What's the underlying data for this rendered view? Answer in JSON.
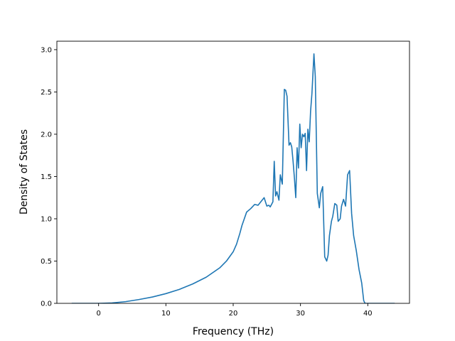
{
  "chart_data": {
    "type": "line",
    "title": "",
    "xlabel": "Frequency (THz)",
    "ylabel": "Density of States",
    "xlim": [
      -6.2,
      46.2
    ],
    "ylim": [
      0,
      3.1
    ],
    "xticks": [
      0,
      10,
      20,
      30,
      40
    ],
    "yticks": [
      0.0,
      0.5,
      1.0,
      1.5,
      2.0,
      2.5,
      3.0
    ],
    "xtick_labels": [
      "0",
      "10",
      "20",
      "30",
      "40"
    ],
    "ytick_labels": [
      "0.0",
      "0.5",
      "1.0",
      "1.5",
      "2.0",
      "2.5",
      "3.0"
    ],
    "grid": false,
    "legend": "none",
    "series": [
      {
        "color": "#1f77b4",
        "x": [
          -4.0,
          0.0,
          2,
          4,
          6,
          8,
          10,
          12,
          14,
          16,
          18,
          19,
          20,
          20.5,
          21.0,
          21.3,
          22.0,
          22.6,
          23.2,
          23.7,
          24.3,
          24.6,
          25.0,
          25.3,
          25.5,
          25.7,
          25.9,
          26.1,
          26.3,
          26.5,
          26.8,
          27.0,
          27.3,
          27.6,
          27.8,
          28.0,
          28.3,
          28.5,
          28.7,
          28.9,
          29.1,
          29.3,
          29.5,
          29.7,
          29.9,
          30.1,
          30.3,
          30.5,
          30.7,
          30.9,
          31.1,
          31.3,
          31.5,
          31.7,
          32.0,
          32.2,
          32.5,
          32.8,
          33.0,
          33.3,
          33.6,
          33.9,
          34.1,
          34.3,
          34.6,
          34.8,
          35.1,
          35.4,
          35.6,
          35.9,
          36.1,
          36.4,
          36.7,
          37.0,
          37.3,
          37.6,
          37.9,
          38.3,
          38.7,
          39.1,
          39.4,
          39.6,
          39.8,
          40.0,
          44.0
        ],
        "y": [
          0.0,
          0.0,
          0.005,
          0.02,
          0.045,
          0.075,
          0.115,
          0.165,
          0.23,
          0.31,
          0.42,
          0.5,
          0.61,
          0.7,
          0.83,
          0.92,
          1.08,
          1.12,
          1.17,
          1.16,
          1.22,
          1.25,
          1.15,
          1.16,
          1.14,
          1.17,
          1.2,
          1.68,
          1.27,
          1.32,
          1.22,
          1.52,
          1.41,
          2.53,
          2.52,
          2.45,
          1.87,
          1.9,
          1.85,
          1.68,
          1.48,
          1.25,
          1.84,
          1.6,
          2.12,
          1.84,
          2.0,
          1.97,
          2.01,
          1.57,
          2.06,
          1.91,
          2.27,
          2.48,
          2.95,
          2.68,
          1.3,
          1.13,
          1.3,
          1.38,
          0.55,
          0.5,
          0.57,
          0.8,
          0.97,
          1.03,
          1.18,
          1.16,
          0.97,
          1.0,
          1.15,
          1.23,
          1.15,
          1.52,
          1.57,
          1.06,
          0.8,
          0.62,
          0.4,
          0.24,
          0.03,
          0.0,
          0.0,
          0.0,
          0.0
        ]
      }
    ]
  }
}
